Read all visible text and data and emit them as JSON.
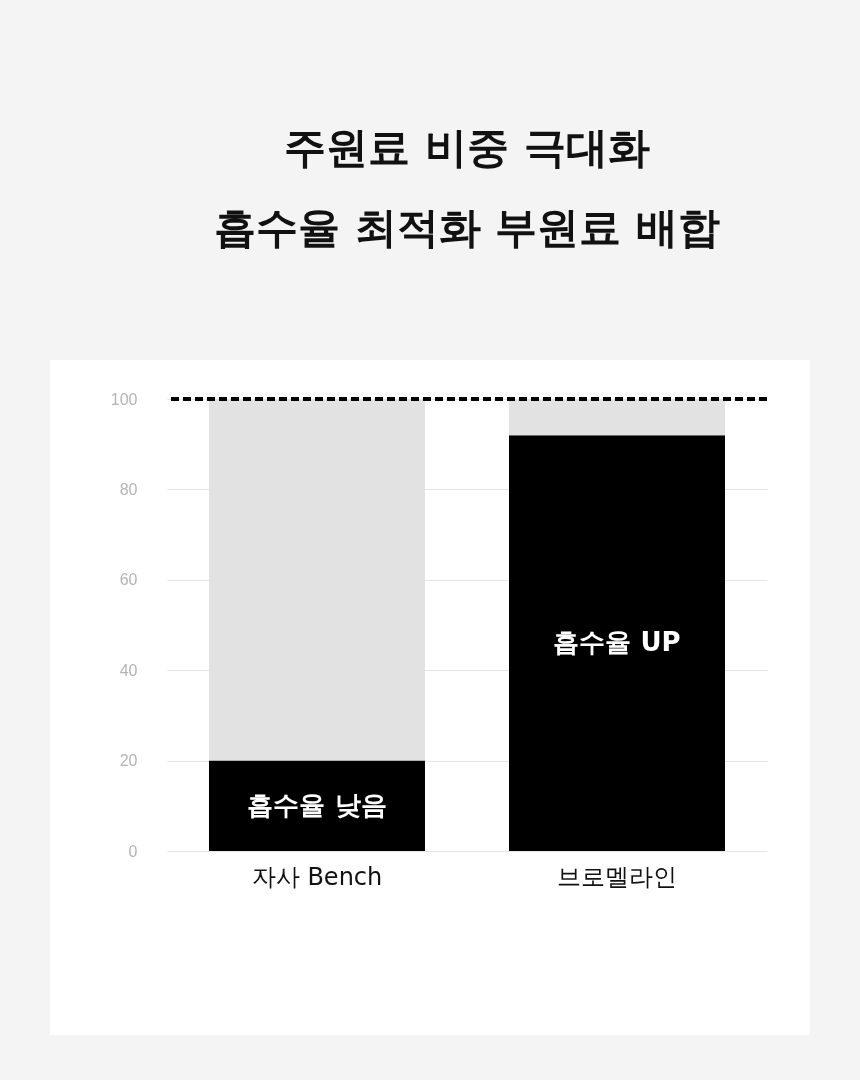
{
  "chart_data": {
    "type": "bar",
    "title": "주원료 비중 극대화\n흡수율 최적화 부원료 배합",
    "categories": [
      "자사 Bench",
      "브로멜라인"
    ],
    "stacked": true,
    "series": [
      {
        "color": "#000000",
        "values": [
          20,
          92
        ]
      },
      {
        "color": "#e2e2e2",
        "values": [
          80,
          8
        ]
      }
    ],
    "ylim": [
      0,
      100
    ],
    "yticks": [
      0,
      20,
      40,
      60,
      80,
      100
    ],
    "grid": "y",
    "ref_lines": [
      {
        "axis": "y",
        "value": 100,
        "color": "#000000",
        "line_style": "dashed"
      }
    ],
    "annotations": [
      "흡수율 낮음",
      "흡수율 UP"
    ]
  }
}
